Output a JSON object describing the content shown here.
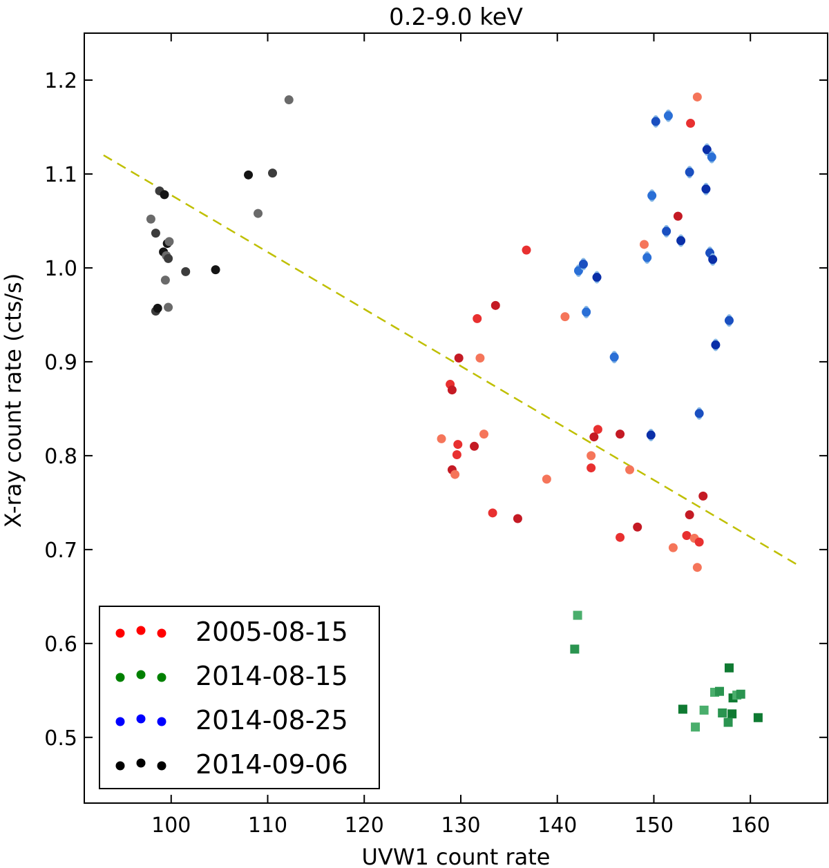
{
  "chart_data": {
    "type": "scatter",
    "title": "0.2-9.0 keV",
    "xlabel": "UVW1 count rate",
    "ylabel": "X-ray count rate (cts/s)",
    "xlim": [
      91,
      168
    ],
    "ylim": [
      0.43,
      1.25
    ],
    "xticks": [
      100,
      110,
      120,
      130,
      140,
      150,
      160
    ],
    "yticks": [
      0.5,
      0.6,
      0.7,
      0.8,
      0.9,
      1.0,
      1.1,
      1.2
    ],
    "fit_line": {
      "style": "dashed",
      "color": "#bfbf00",
      "x": [
        93,
        165
      ],
      "y": [
        1.12,
        0.683
      ]
    },
    "legend": [
      {
        "label": "2005-08-15",
        "color": "#ff0000"
      },
      {
        "label": "2014-08-15",
        "color": "#008000"
      },
      {
        "label": "2014-08-25",
        "color": "#0000ff"
      },
      {
        "label": "2014-09-06",
        "color": "#000000"
      }
    ],
    "series": [
      {
        "name": "2005-08-15",
        "marker": "circle",
        "colors": [
          "#f5755a",
          "#e83030",
          "#c41a24"
        ],
        "points": [
          [
            154.5,
            1.182
          ],
          [
            153.8,
            1.154
          ],
          [
            152.5,
            1.055
          ],
          [
            149.0,
            1.025
          ],
          [
            136.8,
            1.019
          ],
          [
            133.6,
            0.96
          ],
          [
            140.8,
            0.948
          ],
          [
            131.7,
            0.946
          ],
          [
            129.8,
            0.904
          ],
          [
            132.0,
            0.904
          ],
          [
            128.9,
            0.876
          ],
          [
            129.1,
            0.87
          ],
          [
            128.0,
            0.818
          ],
          [
            129.7,
            0.812
          ],
          [
            131.4,
            0.81
          ],
          [
            132.4,
            0.823
          ],
          [
            129.6,
            0.801
          ],
          [
            129.1,
            0.785
          ],
          [
            129.4,
            0.78
          ],
          [
            133.3,
            0.739
          ],
          [
            135.9,
            0.733
          ],
          [
            138.9,
            0.775
          ],
          [
            144.2,
            0.828
          ],
          [
            143.8,
            0.82
          ],
          [
            143.5,
            0.8
          ],
          [
            143.5,
            0.787
          ],
          [
            146.5,
            0.823
          ],
          [
            147.5,
            0.785
          ],
          [
            146.5,
            0.713
          ],
          [
            148.3,
            0.724
          ],
          [
            152.0,
            0.702
          ],
          [
            153.4,
            0.715
          ],
          [
            153.7,
            0.737
          ],
          [
            154.2,
            0.712
          ],
          [
            154.7,
            0.708
          ],
          [
            155.1,
            0.757
          ],
          [
            154.5,
            0.681
          ]
        ]
      },
      {
        "name": "2014-08-15",
        "marker": "square",
        "colors": [
          "#4aae6c",
          "#2a9450",
          "#0f7a32"
        ],
        "points": [
          [
            142.1,
            0.63
          ],
          [
            141.8,
            0.594
          ],
          [
            157.8,
            0.574
          ],
          [
            156.3,
            0.548
          ],
          [
            156.8,
            0.549
          ],
          [
            158.2,
            0.542
          ],
          [
            158.6,
            0.545
          ],
          [
            159.0,
            0.546
          ],
          [
            153.0,
            0.53
          ],
          [
            155.2,
            0.529
          ],
          [
            157.1,
            0.526
          ],
          [
            158.1,
            0.525
          ],
          [
            154.3,
            0.511
          ],
          [
            157.7,
            0.516
          ],
          [
            160.8,
            0.521
          ]
        ]
      },
      {
        "name": "2014-08-25",
        "marker": "circle",
        "colors": [
          "#2a6fd6",
          "#1a4fc0",
          "#0a2fa8"
        ],
        "points": [
          [
            151.5,
            1.162
          ],
          [
            150.2,
            1.156
          ],
          [
            155.5,
            1.126
          ],
          [
            156.0,
            1.118
          ],
          [
            153.7,
            1.102
          ],
          [
            155.4,
            1.084
          ],
          [
            149.8,
            1.077
          ],
          [
            151.3,
            1.039
          ],
          [
            152.8,
            1.029
          ],
          [
            149.3,
            1.011
          ],
          [
            155.8,
            1.016
          ],
          [
            156.1,
            1.009
          ],
          [
            142.2,
            0.997
          ],
          [
            142.7,
            1.004
          ],
          [
            144.1,
            0.99
          ],
          [
            143.0,
            0.953
          ],
          [
            157.8,
            0.944
          ],
          [
            156.4,
            0.918
          ],
          [
            145.9,
            0.905
          ],
          [
            154.7,
            0.845
          ],
          [
            149.7,
            0.822
          ]
        ]
      },
      {
        "name": "2014-09-06",
        "marker": "circle",
        "colors": [
          "#6a6a6a",
          "#3c3c3c",
          "#141414"
        ],
        "points": [
          [
            112.2,
            1.179
          ],
          [
            110.5,
            1.101
          ],
          [
            108.0,
            1.099
          ],
          [
            109.0,
            1.058
          ],
          [
            98.8,
            1.082
          ],
          [
            99.3,
            1.078
          ],
          [
            97.9,
            1.052
          ],
          [
            98.4,
            1.037
          ],
          [
            99.2,
            1.017
          ],
          [
            99.5,
            1.013
          ],
          [
            99.7,
            1.01
          ],
          [
            99.6,
            1.026
          ],
          [
            99.8,
            1.028
          ],
          [
            101.5,
            0.996
          ],
          [
            104.6,
            0.998
          ],
          [
            99.4,
            0.987
          ],
          [
            98.4,
            0.954
          ],
          [
            98.6,
            0.957
          ],
          [
            99.7,
            0.958
          ]
        ]
      }
    ]
  }
}
